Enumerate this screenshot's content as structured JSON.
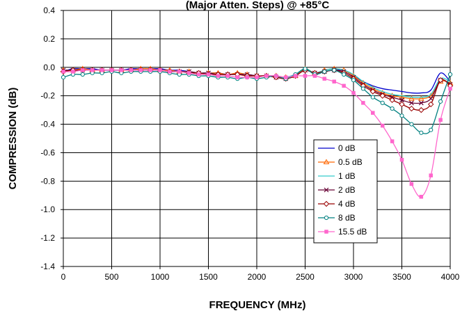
{
  "chart_data": {
    "type": "line",
    "title": "(Major Atten. Steps) @ +85°C",
    "xlabel": "FREQUENCY (MHz)",
    "ylabel": "COMPRESSION (dB)",
    "xlim": [
      0,
      4000
    ],
    "ylim": [
      -1.4,
      0.4
    ],
    "xticks": [
      "0",
      "500",
      "1000",
      "1500",
      "2000",
      "2500",
      "3000",
      "3500",
      "4000"
    ],
    "yticks": [
      "0.4",
      "0.2",
      "0.0",
      "-0.2",
      "-0.4",
      "-0.6",
      "-0.8",
      "-1.0",
      "-1.2",
      "-1.4"
    ],
    "grid": true,
    "legend_position": "lower-right",
    "x": [
      0,
      100,
      200,
      300,
      400,
      500,
      600,
      700,
      800,
      900,
      1000,
      1100,
      1200,
      1300,
      1400,
      1500,
      1600,
      1700,
      1800,
      1900,
      2000,
      2100,
      2200,
      2300,
      2400,
      2500,
      2600,
      2700,
      2800,
      2900,
      3000,
      3100,
      3200,
      3300,
      3400,
      3500,
      3600,
      3700,
      3800,
      3900,
      4000
    ],
    "series": [
      {
        "name": "0 dB",
        "color": "#0000cc",
        "marker": "none",
        "values": [
          -0.03,
          -0.01,
          -0.01,
          -0.01,
          -0.02,
          -0.02,
          -0.02,
          -0.01,
          -0.01,
          -0.01,
          -0.01,
          -0.02,
          -0.02,
          -0.03,
          -0.04,
          -0.04,
          -0.04,
          -0.05,
          -0.05,
          -0.05,
          -0.06,
          -0.06,
          -0.06,
          -0.07,
          -0.05,
          -0.02,
          -0.04,
          -0.03,
          -0.02,
          -0.02,
          -0.06,
          -0.1,
          -0.13,
          -0.15,
          -0.16,
          -0.17,
          -0.18,
          -0.18,
          -0.16,
          -0.04,
          -0.1
        ]
      },
      {
        "name": "0.5 dB",
        "color": "#ff6600",
        "marker": "triangle",
        "values": [
          -0.02,
          -0.02,
          -0.01,
          -0.02,
          -0.02,
          -0.02,
          -0.02,
          -0.02,
          -0.01,
          -0.01,
          -0.02,
          -0.02,
          -0.03,
          -0.03,
          -0.04,
          -0.04,
          -0.04,
          -0.05,
          -0.04,
          -0.05,
          -0.06,
          -0.06,
          -0.06,
          -0.07,
          -0.06,
          -0.01,
          -0.04,
          -0.02,
          -0.01,
          -0.02,
          -0.06,
          -0.11,
          -0.15,
          -0.18,
          -0.2,
          -0.21,
          -0.22,
          -0.22,
          -0.2,
          -0.1,
          -0.11
        ]
      },
      {
        "name": "1 dB",
        "color": "#33cccc",
        "marker": "none",
        "values": [
          -0.02,
          -0.02,
          -0.02,
          -0.02,
          -0.02,
          -0.02,
          -0.02,
          -0.02,
          -0.02,
          -0.02,
          -0.02,
          -0.03,
          -0.03,
          -0.03,
          -0.04,
          -0.04,
          -0.05,
          -0.05,
          -0.05,
          -0.05,
          -0.06,
          -0.06,
          -0.07,
          -0.07,
          -0.05,
          -0.01,
          -0.04,
          -0.02,
          -0.01,
          -0.02,
          -0.05,
          -0.1,
          -0.14,
          -0.17,
          -0.19,
          -0.2,
          -0.21,
          -0.21,
          -0.19,
          -0.08,
          -0.1
        ]
      },
      {
        "name": "2 dB",
        "color": "#660033",
        "marker": "x",
        "values": [
          -0.02,
          -0.02,
          -0.02,
          -0.02,
          -0.02,
          -0.02,
          -0.02,
          -0.02,
          -0.02,
          -0.02,
          -0.02,
          -0.03,
          -0.03,
          -0.03,
          -0.04,
          -0.04,
          -0.05,
          -0.05,
          -0.05,
          -0.05,
          -0.06,
          -0.06,
          -0.07,
          -0.08,
          -0.06,
          -0.02,
          -0.04,
          -0.03,
          -0.02,
          -0.03,
          -0.07,
          -0.12,
          -0.16,
          -0.19,
          -0.21,
          -0.23,
          -0.25,
          -0.25,
          -0.22,
          -0.09,
          -0.12
        ]
      },
      {
        "name": "4 dB",
        "color": "#990000",
        "marker": "diamond",
        "values": [
          -0.03,
          -0.02,
          -0.02,
          -0.02,
          -0.02,
          -0.02,
          -0.02,
          -0.02,
          -0.02,
          -0.02,
          -0.02,
          -0.03,
          -0.03,
          -0.04,
          -0.04,
          -0.05,
          -0.05,
          -0.05,
          -0.05,
          -0.06,
          -0.06,
          -0.06,
          -0.07,
          -0.08,
          -0.06,
          -0.02,
          -0.04,
          -0.03,
          -0.02,
          -0.04,
          -0.08,
          -0.13,
          -0.17,
          -0.2,
          -0.23,
          -0.26,
          -0.29,
          -0.3,
          -0.26,
          -0.09,
          -0.13
        ]
      },
      {
        "name": "8 dB",
        "color": "#008080",
        "marker": "circle",
        "values": [
          -0.07,
          -0.05,
          -0.05,
          -0.04,
          -0.04,
          -0.03,
          -0.04,
          -0.03,
          -0.03,
          -0.03,
          -0.03,
          -0.04,
          -0.05,
          -0.05,
          -0.06,
          -0.06,
          -0.07,
          -0.07,
          -0.08,
          -0.07,
          -0.08,
          -0.07,
          -0.06,
          -0.08,
          -0.05,
          -0.01,
          -0.05,
          -0.03,
          -0.02,
          -0.05,
          -0.09,
          -0.15,
          -0.21,
          -0.25,
          -0.29,
          -0.34,
          -0.4,
          -0.46,
          -0.44,
          -0.24,
          -0.05
        ]
      },
      {
        "name": "15.5 dB",
        "color": "#ff66cc",
        "marker": "square",
        "values": [
          -0.03,
          -0.03,
          -0.02,
          -0.02,
          -0.02,
          -0.02,
          -0.02,
          -0.02,
          -0.02,
          -0.02,
          -0.02,
          -0.03,
          -0.03,
          -0.04,
          -0.05,
          -0.05,
          -0.06,
          -0.06,
          -0.07,
          -0.07,
          -0.07,
          -0.06,
          -0.06,
          -0.07,
          -0.06,
          -0.06,
          -0.06,
          -0.08,
          -0.1,
          -0.13,
          -0.18,
          -0.25,
          -0.32,
          -0.41,
          -0.52,
          -0.65,
          -0.82,
          -0.91,
          -0.76,
          -0.37,
          -0.15
        ]
      }
    ]
  }
}
